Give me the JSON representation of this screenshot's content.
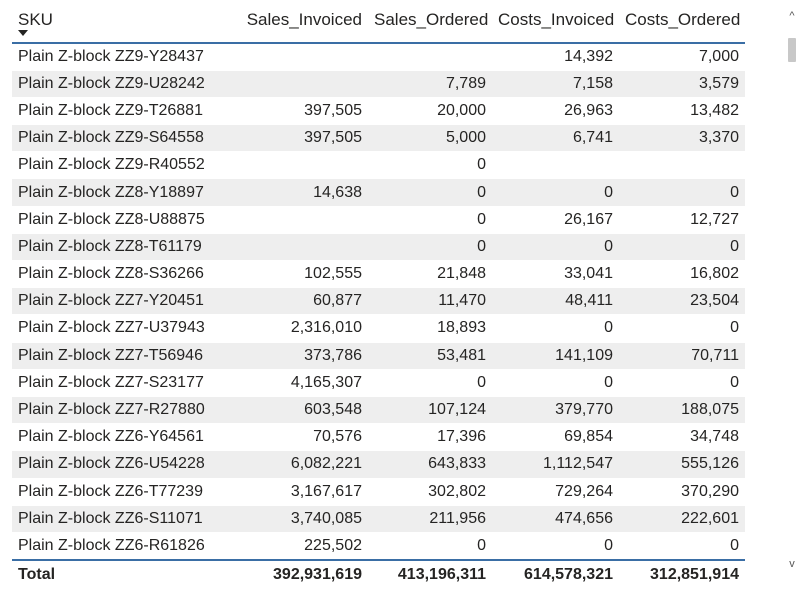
{
  "table": {
    "headers": {
      "sku": "SKU",
      "sales_invoiced": "Sales_Invoiced",
      "sales_ordered": "Sales_Ordered",
      "costs_invoiced": "Costs_Invoiced",
      "costs_ordered": "Costs_Ordered"
    },
    "sort": "descending",
    "rows": [
      {
        "sku": "Plain Z-block ZZ9-Y28437",
        "sales_invoiced": "",
        "sales_ordered": "",
        "costs_invoiced": "14,392",
        "costs_ordered": "7,000"
      },
      {
        "sku": "Plain Z-block ZZ9-U28242",
        "sales_invoiced": "",
        "sales_ordered": "7,789",
        "costs_invoiced": "7,158",
        "costs_ordered": "3,579"
      },
      {
        "sku": "Plain Z-block ZZ9-T26881",
        "sales_invoiced": "397,505",
        "sales_ordered": "20,000",
        "costs_invoiced": "26,963",
        "costs_ordered": "13,482"
      },
      {
        "sku": "Plain Z-block ZZ9-S64558",
        "sales_invoiced": "397,505",
        "sales_ordered": "5,000",
        "costs_invoiced": "6,741",
        "costs_ordered": "3,370"
      },
      {
        "sku": "Plain Z-block ZZ9-R40552",
        "sales_invoiced": "",
        "sales_ordered": "0",
        "costs_invoiced": "",
        "costs_ordered": ""
      },
      {
        "sku": "Plain Z-block ZZ8-Y18897",
        "sales_invoiced": "14,638",
        "sales_ordered": "0",
        "costs_invoiced": "0",
        "costs_ordered": "0"
      },
      {
        "sku": "Plain Z-block ZZ8-U88875",
        "sales_invoiced": "",
        "sales_ordered": "0",
        "costs_invoiced": "26,167",
        "costs_ordered": "12,727"
      },
      {
        "sku": "Plain Z-block ZZ8-T61179",
        "sales_invoiced": "",
        "sales_ordered": "0",
        "costs_invoiced": "0",
        "costs_ordered": "0"
      },
      {
        "sku": "Plain Z-block ZZ8-S36266",
        "sales_invoiced": "102,555",
        "sales_ordered": "21,848",
        "costs_invoiced": "33,041",
        "costs_ordered": "16,802"
      },
      {
        "sku": "Plain Z-block ZZ7-Y20451",
        "sales_invoiced": "60,877",
        "sales_ordered": "11,470",
        "costs_invoiced": "48,411",
        "costs_ordered": "23,504"
      },
      {
        "sku": "Plain Z-block ZZ7-U37943",
        "sales_invoiced": "2,316,010",
        "sales_ordered": "18,893",
        "costs_invoiced": "0",
        "costs_ordered": "0"
      },
      {
        "sku": "Plain Z-block ZZ7-T56946",
        "sales_invoiced": "373,786",
        "sales_ordered": "53,481",
        "costs_invoiced": "141,109",
        "costs_ordered": "70,711"
      },
      {
        "sku": "Plain Z-block ZZ7-S23177",
        "sales_invoiced": "4,165,307",
        "sales_ordered": "0",
        "costs_invoiced": "0",
        "costs_ordered": "0"
      },
      {
        "sku": "Plain Z-block ZZ7-R27880",
        "sales_invoiced": "603,548",
        "sales_ordered": "107,124",
        "costs_invoiced": "379,770",
        "costs_ordered": "188,075"
      },
      {
        "sku": "Plain Z-block ZZ6-Y64561",
        "sales_invoiced": "70,576",
        "sales_ordered": "17,396",
        "costs_invoiced": "69,854",
        "costs_ordered": "34,748"
      },
      {
        "sku": "Plain Z-block ZZ6-U54228",
        "sales_invoiced": "6,082,221",
        "sales_ordered": "643,833",
        "costs_invoiced": "1,112,547",
        "costs_ordered": "555,126"
      },
      {
        "sku": "Plain Z-block ZZ6-T77239",
        "sales_invoiced": "3,167,617",
        "sales_ordered": "302,802",
        "costs_invoiced": "729,264",
        "costs_ordered": "370,290"
      },
      {
        "sku": "Plain Z-block ZZ6-S11071",
        "sales_invoiced": "3,740,085",
        "sales_ordered": "211,956",
        "costs_invoiced": "474,656",
        "costs_ordered": "222,601"
      },
      {
        "sku": "Plain Z-block ZZ6-R61826",
        "sales_invoiced": "225,502",
        "sales_ordered": "0",
        "costs_invoiced": "0",
        "costs_ordered": "0"
      }
    ],
    "total": {
      "sku": "Total",
      "sales_invoiced": "392,931,619",
      "sales_ordered": "413,196,311",
      "costs_invoiced": "614,578,321",
      "costs_ordered": "312,851,914"
    }
  },
  "scrollbar": {
    "up_icon": "chevron-up-icon",
    "down_icon": "chevron-down-icon",
    "up_glyph": "^",
    "down_glyph": "v"
  },
  "colors": {
    "header_rule": "#3a6ea5",
    "row_alt": "#eeeeee",
    "text": "#252423"
  }
}
